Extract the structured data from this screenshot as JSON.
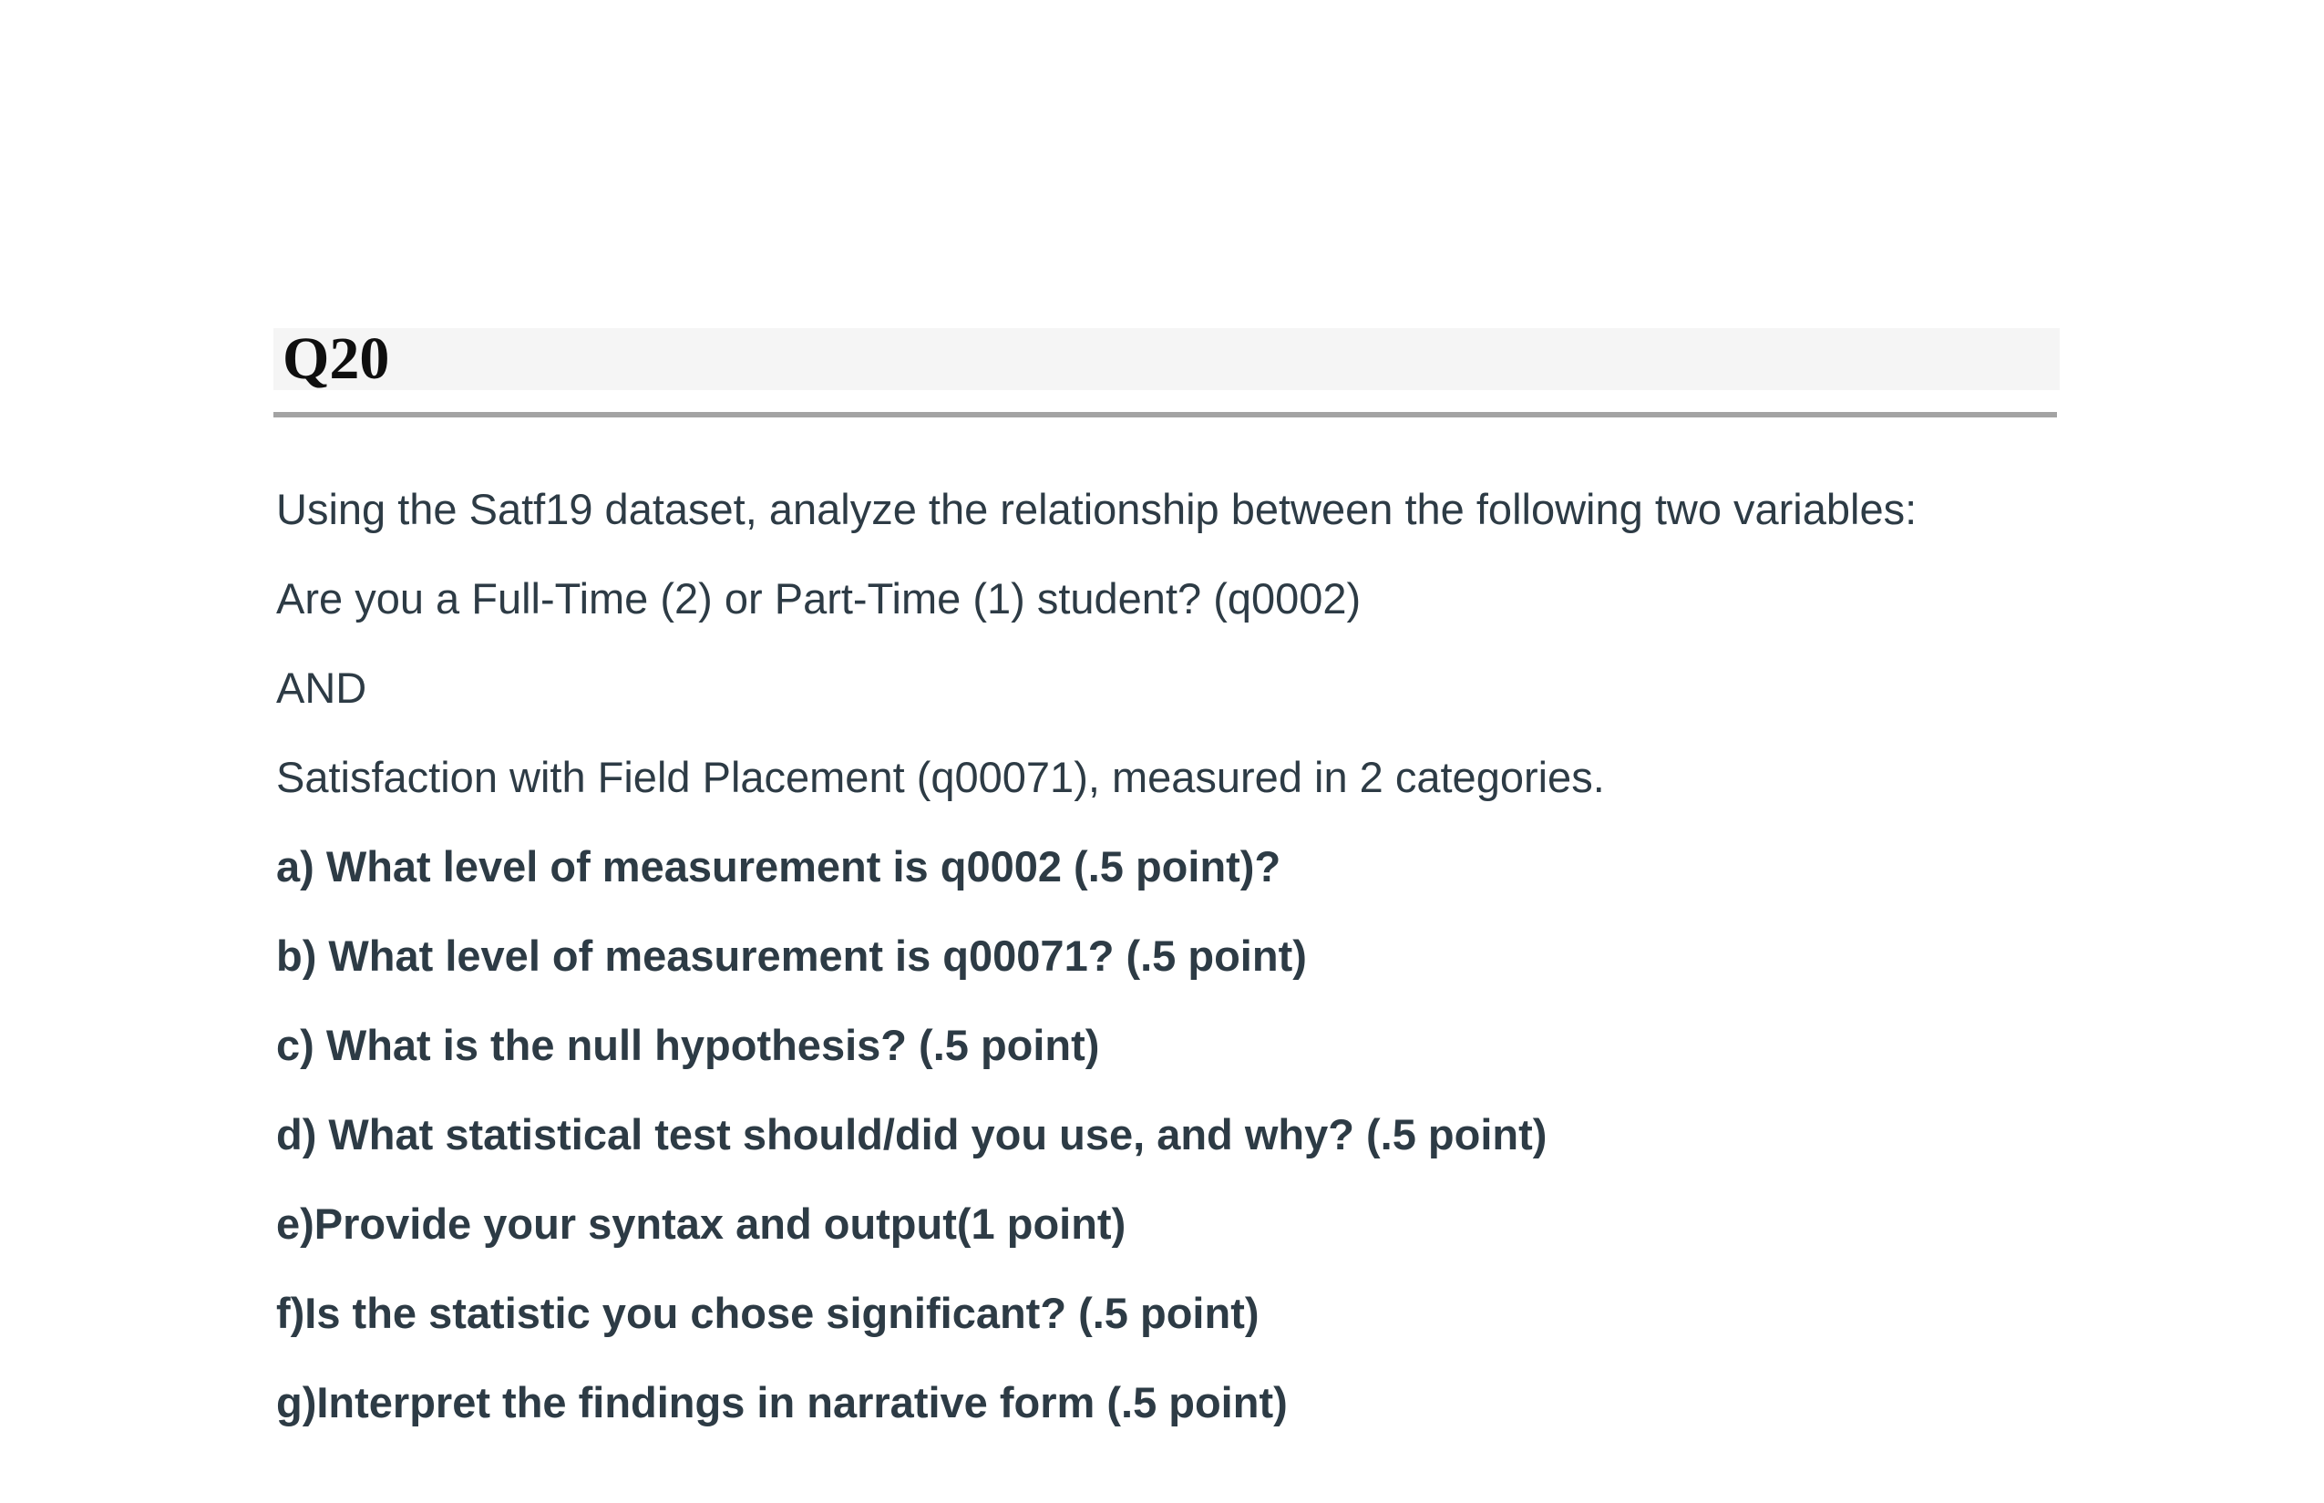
{
  "question": {
    "id_label": "Q20",
    "intro_lines": [
      "Using the Satf19 dataset, analyze the relationship between the following two variables:",
      "Are you a Full-Time (2) or Part-Time (1) student? (q0002)",
      "AND",
      "Satisfaction with Field Placement (q00071), measured in 2 categories."
    ],
    "parts": [
      "a) What level of measurement is q0002 (.5 point)?",
      "b) What level of measurement is q00071? (.5 point)",
      "c) What is the null hypothesis? (.5 point)",
      "d) What statistical test should/did you use, and why? (.5 point)",
      "e)Provide your syntax and output(1 point)",
      "f)Is the statistic you chose significant? (.5 point)",
      "g)Interpret the findings in narrative form (.5 point)"
    ]
  },
  "colors": {
    "body_text": "#2d3b45",
    "header_bg": "#f5f5f5",
    "header_text": "#0f0f0f",
    "rule": "#a3a3a3"
  }
}
